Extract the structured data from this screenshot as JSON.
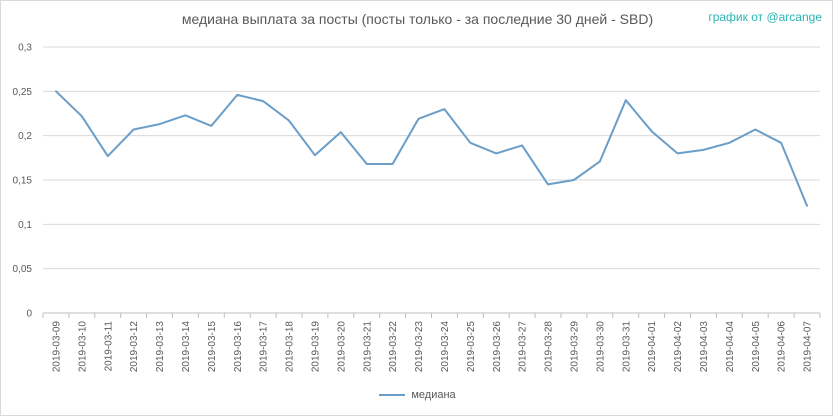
{
  "chart_data": {
    "type": "line",
    "title": "медиана выплата за посты  (посты только - за последние 30 дней - SBD)",
    "credit": "график от @arcange",
    "xlabel": "",
    "ylabel": "",
    "ylim": [
      0,
      0.3
    ],
    "y_ticks": [
      "0",
      "0,05",
      "0,1",
      "0,15",
      "0,2",
      "0,25",
      "0,3"
    ],
    "y_tick_values": [
      0,
      0.05,
      0.1,
      0.15,
      0.2,
      0.25,
      0.3
    ],
    "grid": true,
    "legend_position": "bottom",
    "line_color": "#6a9ec8",
    "categories": [
      "2019-03-09",
      "2019-03-10",
      "2019-03-11",
      "2019-03-12",
      "2019-03-13",
      "2019-03-14",
      "2019-03-15",
      "2019-03-16",
      "2019-03-17",
      "2019-03-18",
      "2019-03-19",
      "2019-03-20",
      "2019-03-21",
      "2019-03-22",
      "2019-03-23",
      "2019-03-24",
      "2019-03-25",
      "2019-03-26",
      "2019-03-27",
      "2019-03-28",
      "2019-03-29",
      "2019-03-30",
      "2019-03-31",
      "2019-04-01",
      "2019-04-02",
      "2019-04-03",
      "2019-04-04",
      "2019-04-05",
      "2019-04-06",
      "2019-04-07"
    ],
    "series": [
      {
        "name": "медиана",
        "values": [
          0.25,
          0.222,
          0.177,
          0.207,
          0.213,
          0.223,
          0.211,
          0.246,
          0.239,
          0.217,
          0.178,
          0.204,
          0.168,
          0.168,
          0.219,
          0.23,
          0.192,
          0.18,
          0.189,
          0.145,
          0.15,
          0.171,
          0.24,
          0.205,
          0.18,
          0.184,
          0.192,
          0.207,
          0.192,
          0.121
        ]
      }
    ]
  }
}
